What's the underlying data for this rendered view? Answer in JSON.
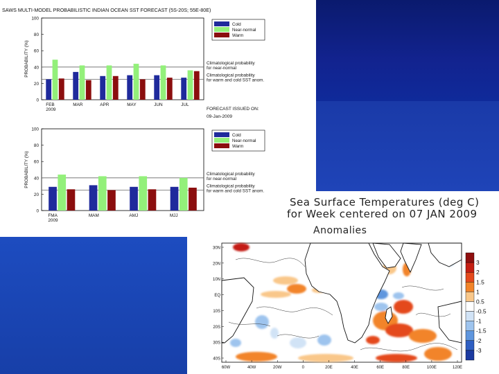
{
  "main_title": "SAWS MULTI-MODEL PROBABILISTIC INDIAN OCEAN SST FORECAST (5S-20S; 55E-80E)",
  "forecast_issued_label": "FORECAST ISSUED ON:",
  "forecast_issued_date": "09-Jan-2009",
  "chart_data": [
    {
      "type": "bar",
      "title": "SAWS MULTI-MODEL PROBABILISTIC INDIAN OCEAN SST FORECAST (5S-20S; 55E-80E)",
      "ylabel": "PROBABILITY (%)",
      "ylim": [
        0,
        100
      ],
      "yticks": [
        "0",
        "20",
        "40",
        "60",
        "80",
        "100"
      ],
      "categories": [
        "FEB",
        "MAR",
        "APR",
        "MAY",
        "JUN",
        "JUL"
      ],
      "category_sub": [
        "2009",
        "",
        "",
        "",
        "",
        ""
      ],
      "series": [
        {
          "name": "Cold",
          "color": "#1f2a9c",
          "values": [
            25,
            34,
            29,
            30,
            30,
            27
          ]
        },
        {
          "name": "Near-normal",
          "color": "#93f07a",
          "values": [
            49,
            42,
            42,
            44,
            42,
            36
          ]
        },
        {
          "name": "Warm",
          "color": "#8b0e0e",
          "values": [
            26,
            24,
            29,
            25,
            27,
            35
          ]
        }
      ],
      "reference_lines": [
        {
          "value": 40,
          "label": "Climatological probability",
          "label2": "for near-normal"
        },
        {
          "value": 25,
          "label": "Climatological probability",
          "label2": "for warm and cold SST anom."
        }
      ]
    },
    {
      "type": "bar",
      "title": "",
      "ylabel": "PROBABILITY (%)",
      "ylim": [
        0,
        100
      ],
      "yticks": [
        "0",
        "20",
        "40",
        "60",
        "80",
        "100"
      ],
      "categories": [
        "FMA",
        "MAM",
        "AMJ",
        "MJJ"
      ],
      "category_sub": [
        "2009",
        "",
        "",
        ""
      ],
      "series": [
        {
          "name": "Cold",
          "color": "#1f2a9c",
          "values": [
            29,
            31,
            29,
            29
          ]
        },
        {
          "name": "Near-normal",
          "color": "#93f07a",
          "values": [
            44,
            42,
            42,
            40
          ]
        },
        {
          "name": "Warm",
          "color": "#8b0e0e",
          "values": [
            26,
            25,
            26,
            28
          ]
        }
      ],
      "reference_lines": [
        {
          "value": 40,
          "label": "Climatological probability",
          "label2": "for near-normal"
        },
        {
          "value": 25,
          "label": "Climatological probability",
          "label2": "for warm and cold SST anom."
        }
      ]
    },
    {
      "type": "heatmap",
      "title": "Sea Surface Temperatures (deg C)",
      "subtitle": "for Week centered on 07 JAN 2009",
      "label": "Anomalies",
      "y_ticks": [
        "30N",
        "20N",
        "10N",
        "EQ",
        "10S",
        "20S",
        "30S",
        "40S"
      ],
      "x_ticks": [
        "60W",
        "40W",
        "20W",
        "0",
        "20E",
        "40E",
        "60E",
        "80E",
        "100E",
        "120E"
      ],
      "colorbar_levels": [
        "3",
        "2",
        "1.5",
        "1",
        "0.5",
        "-0.5",
        "-1",
        "-1.5",
        "-2",
        "-3"
      ],
      "colorbar_colors": [
        "#8f0f0f",
        "#c41e12",
        "#e4491c",
        "#f2842a",
        "#f9c78a",
        "#ffffff",
        "#d1e3f6",
        "#9ec4ee",
        "#5f96de",
        "#2f5fc2",
        "#1b3aa0"
      ]
    }
  ]
}
